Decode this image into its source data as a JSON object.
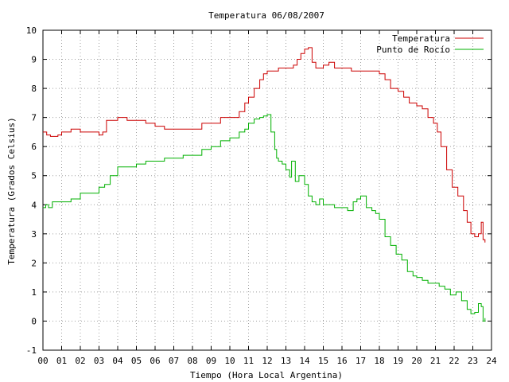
{
  "chart_data": {
    "type": "line",
    "title": "Temperatura 06/08/2007",
    "xlabel": "Tiempo (Hora Local Argentina)",
    "ylabel": "Temperatura (Grados Celsius)",
    "xlim": [
      0,
      24
    ],
    "ylim": [
      -1,
      10
    ],
    "x_ticks": [
      "00",
      "01",
      "02",
      "03",
      "04",
      "05",
      "06",
      "07",
      "08",
      "09",
      "10",
      "11",
      "12",
      "13",
      "14",
      "15",
      "16",
      "17",
      "18",
      "19",
      "20",
      "21",
      "22",
      "23",
      "24"
    ],
    "y_ticks": [
      "-1",
      "0",
      "1",
      "2",
      "3",
      "4",
      "5",
      "6",
      "7",
      "8",
      "9",
      "10"
    ],
    "grid": true,
    "legend_position": "top-right",
    "series": [
      {
        "name": "Temperatura",
        "color": "#cc0000",
        "x": [
          0,
          0.2,
          0.4,
          0.8,
          1.0,
          1.5,
          2.0,
          2.5,
          3.0,
          3.2,
          3.4,
          3.6,
          4.0,
          4.5,
          5.0,
          5.5,
          6.0,
          6.5,
          7.0,
          7.5,
          8.0,
          8.5,
          9.0,
          9.5,
          10.0,
          10.5,
          10.8,
          11.0,
          11.3,
          11.6,
          11.8,
          12.0,
          12.3,
          12.6,
          12.9,
          13.2,
          13.4,
          13.6,
          13.8,
          14.0,
          14.2,
          14.4,
          14.6,
          14.8,
          15.0,
          15.3,
          15.6,
          16.0,
          16.5,
          17.0,
          17.5,
          17.8,
          18.0,
          18.3,
          18.6,
          19.0,
          19.3,
          19.6,
          20.0,
          20.3,
          20.6,
          20.9,
          21.1,
          21.3,
          21.6,
          21.9,
          22.2,
          22.5,
          22.7,
          22.9,
          23.1,
          23.3,
          23.45,
          23.55,
          23.65
        ],
        "y": [
          6.5,
          6.4,
          6.35,
          6.4,
          6.5,
          6.6,
          6.5,
          6.5,
          6.4,
          6.5,
          6.9,
          6.9,
          7.0,
          6.9,
          6.9,
          6.8,
          6.7,
          6.6,
          6.6,
          6.6,
          6.6,
          6.8,
          6.8,
          7.0,
          7.0,
          7.2,
          7.5,
          7.7,
          8.0,
          8.3,
          8.5,
          8.6,
          8.6,
          8.7,
          8.7,
          8.7,
          8.8,
          9.0,
          9.2,
          9.35,
          9.4,
          8.9,
          8.7,
          8.7,
          8.8,
          8.9,
          8.7,
          8.7,
          8.6,
          8.6,
          8.6,
          8.6,
          8.5,
          8.3,
          8.0,
          7.9,
          7.7,
          7.5,
          7.4,
          7.3,
          7.0,
          6.8,
          6.5,
          6.0,
          5.2,
          4.6,
          4.3,
          3.8,
          3.4,
          3.0,
          2.9,
          3.0,
          3.4,
          2.8,
          2.7
        ]
      },
      {
        "name": "Punto de Rocío",
        "color": "#00b000",
        "x": [
          0,
          0.15,
          0.3,
          0.5,
          1.0,
          1.5,
          2.0,
          2.5,
          3.0,
          3.3,
          3.6,
          4.0,
          4.5,
          5.0,
          5.5,
          6.0,
          6.5,
          7.0,
          7.5,
          8.0,
          8.5,
          9.0,
          9.5,
          10.0,
          10.5,
          10.8,
          11.0,
          11.3,
          11.6,
          11.8,
          12.0,
          12.2,
          12.4,
          12.5,
          12.6,
          12.8,
          13.0,
          13.2,
          13.3,
          13.5,
          13.7,
          14.0,
          14.2,
          14.4,
          14.6,
          14.8,
          15.0,
          15.3,
          15.6,
          16.0,
          16.3,
          16.6,
          16.8,
          17.0,
          17.3,
          17.6,
          17.8,
          18.0,
          18.3,
          18.6,
          18.9,
          19.2,
          19.5,
          19.8,
          20.0,
          20.3,
          20.6,
          20.9,
          21.2,
          21.5,
          21.8,
          22.1,
          22.4,
          22.7,
          22.9,
          23.1,
          23.3,
          23.45,
          23.55,
          23.65
        ],
        "y": [
          3.9,
          4.0,
          3.9,
          4.1,
          4.1,
          4.2,
          4.4,
          4.4,
          4.6,
          4.7,
          5.0,
          5.3,
          5.3,
          5.4,
          5.5,
          5.5,
          5.6,
          5.6,
          5.7,
          5.7,
          5.9,
          6.0,
          6.2,
          6.3,
          6.5,
          6.6,
          6.8,
          6.95,
          7.0,
          7.05,
          7.1,
          6.5,
          5.9,
          5.6,
          5.5,
          5.4,
          5.2,
          4.95,
          5.5,
          4.8,
          5.0,
          4.7,
          4.3,
          4.1,
          4.0,
          4.2,
          4.0,
          4.0,
          3.9,
          3.9,
          3.8,
          4.1,
          4.2,
          4.3,
          3.9,
          3.8,
          3.7,
          3.5,
          2.9,
          2.6,
          2.3,
          2.1,
          1.7,
          1.55,
          1.5,
          1.4,
          1.3,
          1.3,
          1.2,
          1.1,
          0.9,
          1.0,
          0.7,
          0.4,
          0.25,
          0.3,
          0.6,
          0.5,
          0.0,
          0.1
        ]
      }
    ]
  }
}
